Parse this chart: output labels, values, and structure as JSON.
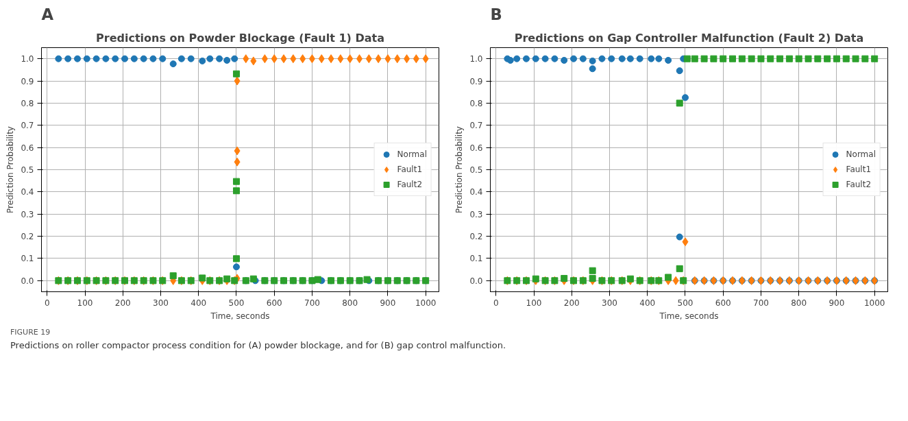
{
  "chart_data": [
    {
      "type": "scatter",
      "title": "Predictions on Powder Blockage (Fault 1) Data",
      "xlabel": "Time, seconds",
      "ylabel": "Prediction Probability",
      "annotations": [
        "A",
        "FIGURE 19",
        "Predictions on roller compactor process condition for (A) powder blockage, and for (B) gap control malfunction."
      ],
      "xlim": [
        -15,
        1035
      ],
      "ylim": [
        -0.05,
        1.05
      ],
      "xticks": [
        0,
        100,
        200,
        300,
        400,
        500,
        600,
        700,
        800,
        900,
        1000
      ],
      "yticks": [
        {
          "value": 0,
          "label": "0.0"
        },
        {
          "value": 0.1,
          "label": "0.1"
        },
        {
          "value": 0.2,
          "label": "0.2"
        },
        {
          "value": 0.3,
          "label": "0.3"
        },
        {
          "value": 0.4,
          "label": "0.4"
        },
        {
          "value": 0.5,
          "label": "0.5"
        },
        {
          "value": 0.6,
          "label": "0.6"
        },
        {
          "value": 0.7,
          "label": "0.7"
        },
        {
          "value": 0.8,
          "label": "0.8"
        },
        {
          "value": 0.9,
          "label": "0.9"
        },
        {
          "value": 1,
          "label": "1.0"
        }
      ],
      "grid": true,
      "legend": "right",
      "series": [
        {
          "name": "Normal",
          "color": "#1f77b4",
          "marker": "circle",
          "x": [
            30,
            55,
            80,
            105,
            130,
            155,
            180,
            205,
            230,
            255,
            280,
            305,
            333,
            355,
            380,
            410,
            430,
            455,
            475,
            495,
            500,
            525,
            550,
            575,
            600,
            625,
            650,
            675,
            700,
            725,
            750,
            775,
            800,
            825,
            850,
            875,
            900,
            925,
            950,
            975,
            1000
          ],
          "values": [
            1,
            1,
            1,
            1,
            1,
            1,
            1,
            1,
            1,
            1,
            1,
            1,
            0.977,
            1,
            1,
            0.99,
            1,
            1,
            0.993,
            1,
            0.062,
            0,
            0,
            0,
            0,
            0,
            0,
            0,
            0,
            0,
            0,
            0,
            0,
            0,
            0,
            0,
            0,
            0,
            0,
            0,
            0
          ]
        },
        {
          "name": "Fault1",
          "color": "#ff7f0e",
          "marker": "diamond",
          "x": [
            30,
            55,
            80,
            105,
            130,
            155,
            180,
            205,
            230,
            255,
            280,
            305,
            333,
            355,
            380,
            410,
            430,
            455,
            475,
            495,
            502,
            502,
            502,
            502,
            525,
            545,
            575,
            600,
            625,
            650,
            675,
            700,
            725,
            750,
            775,
            800,
            825,
            850,
            875,
            900,
            925,
            950,
            975,
            1000
          ],
          "values": [
            0,
            0,
            0,
            0,
            0,
            0,
            0,
            0,
            0,
            0,
            0,
            0,
            0,
            0,
            0,
            0,
            0,
            0,
            0,
            0,
            0.9,
            0.585,
            0.535,
            0.01,
            1,
            0.99,
            1,
            1,
            1,
            1,
            1,
            1,
            1,
            1,
            1,
            1,
            1,
            1,
            1,
            1,
            1,
            1,
            1,
            1
          ]
        },
        {
          "name": "Fault2",
          "color": "#2ca02c",
          "marker": "square",
          "x": [
            30,
            55,
            80,
            105,
            130,
            155,
            180,
            205,
            230,
            255,
            280,
            305,
            333,
            355,
            380,
            410,
            430,
            455,
            475,
            495,
            500,
            500,
            500,
            500,
            525,
            545,
            575,
            600,
            625,
            650,
            675,
            700,
            715,
            750,
            775,
            800,
            825,
            845,
            875,
            900,
            925,
            950,
            975,
            1000
          ],
          "values": [
            0,
            0,
            0,
            0,
            0,
            0,
            0,
            0,
            0,
            0,
            0,
            0,
            0.022,
            0,
            0,
            0.012,
            0,
            0,
            0.008,
            0,
            0.932,
            0.447,
            0.405,
            0.099,
            0,
            0.008,
            0,
            0,
            0,
            0,
            0,
            0,
            0.005,
            0,
            0,
            0,
            0,
            0.005,
            0,
            0,
            0,
            0,
            0,
            0
          ]
        }
      ]
    },
    {
      "type": "scatter",
      "title": "Predictions on Gap Controller Malfunction (Fault 2) Data",
      "xlabel": "Time, seconds",
      "ylabel": "Prediction Probability",
      "annotations": [
        "B"
      ],
      "xlim": [
        -15,
        1035
      ],
      "ylim": [
        -0.05,
        1.05
      ],
      "xticks": [
        0,
        100,
        200,
        300,
        400,
        500,
        600,
        700,
        800,
        900,
        1000
      ],
      "yticks": [
        {
          "value": 0,
          "label": "0.0"
        },
        {
          "value": 0.1,
          "label": "0.1"
        },
        {
          "value": 0.2,
          "label": "0.2"
        },
        {
          "value": 0.3,
          "label": "0.3"
        },
        {
          "value": 0.4,
          "label": "0.4"
        },
        {
          "value": 0.5,
          "label": "0.5"
        },
        {
          "value": 0.6,
          "label": "0.6"
        },
        {
          "value": 0.7,
          "label": "0.7"
        },
        {
          "value": 0.8,
          "label": "0.8"
        },
        {
          "value": 0.9,
          "label": "0.9"
        },
        {
          "value": 1,
          "label": "1.0"
        }
      ],
      "grid": true,
      "legend": "right",
      "series": [
        {
          "name": "Normal",
          "color": "#1f77b4",
          "marker": "circle",
          "x": [
            30,
            38,
            55,
            80,
            105,
            130,
            155,
            180,
            205,
            230,
            255,
            255,
            280,
            305,
            333,
            355,
            380,
            410,
            430,
            455,
            485,
            485,
            495,
            500,
            525,
            550,
            575,
            600,
            625,
            650,
            675,
            700,
            725,
            750,
            775,
            800,
            825,
            850,
            875,
            900,
            925,
            950,
            975,
            1000
          ],
          "values": [
            1,
            0.993,
            1,
            1,
            1,
            1,
            1,
            0.993,
            1,
            1,
            0.99,
            0.955,
            1,
            1,
            1,
            1,
            1,
            1,
            1,
            0.993,
            0.946,
            0.197,
            1,
            0.825,
            0,
            0,
            0,
            0,
            0,
            0,
            0,
            0,
            0,
            0,
            0,
            0,
            0,
            0,
            0,
            0,
            0,
            0,
            0,
            0
          ]
        },
        {
          "name": "Fault1",
          "color": "#ff7f0e",
          "marker": "diamond",
          "x": [
            30,
            55,
            80,
            105,
            130,
            155,
            180,
            205,
            230,
            255,
            280,
            305,
            333,
            355,
            380,
            410,
            430,
            455,
            475,
            495,
            500,
            525,
            550,
            575,
            600,
            625,
            650,
            675,
            700,
            725,
            750,
            775,
            800,
            825,
            850,
            875,
            900,
            925,
            950,
            975,
            1000
          ],
          "values": [
            0,
            0,
            0,
            0,
            0,
            0,
            0,
            0,
            0,
            0,
            0,
            0,
            0,
            0,
            0,
            0,
            0,
            0,
            0,
            0,
            0.175,
            0,
            0,
            0,
            0,
            0,
            0,
            0,
            0,
            0,
            0,
            0,
            0,
            0,
            0,
            0,
            0,
            0,
            0,
            0,
            0
          ]
        },
        {
          "name": "Fault2",
          "color": "#2ca02c",
          "marker": "square",
          "x": [
            30,
            55,
            80,
            105,
            130,
            155,
            180,
            205,
            230,
            255,
            255,
            280,
            305,
            333,
            355,
            380,
            410,
            430,
            455,
            485,
            485,
            495,
            505,
            525,
            550,
            575,
            600,
            625,
            650,
            675,
            700,
            725,
            750,
            775,
            800,
            825,
            850,
            875,
            900,
            925,
            950,
            975,
            1000
          ],
          "values": [
            0,
            0,
            0,
            0.008,
            0,
            0,
            0.01,
            0,
            0,
            0.045,
            0.01,
            0,
            0,
            0,
            0.008,
            0,
            0,
            0,
            0.015,
            0.8,
            0.054,
            0,
            1,
            1,
            1,
            1,
            1,
            1,
            1,
            1,
            1,
            1,
            1,
            1,
            1,
            1,
            1,
            1,
            1,
            1,
            1,
            1,
            1
          ]
        }
      ]
    }
  ]
}
